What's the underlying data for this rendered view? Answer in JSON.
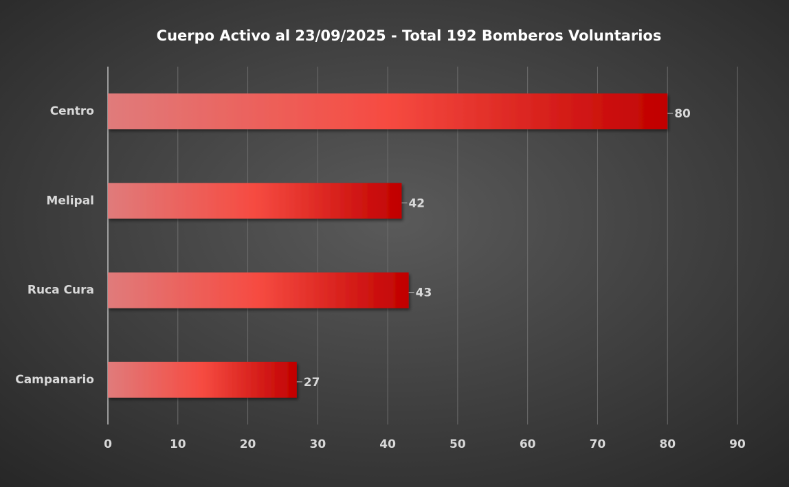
{
  "chart_data": {
    "type": "bar",
    "orientation": "horizontal",
    "title": "Cuerpo Activo al 23/09/2025 - Total 192 Bomberos Voluntarios",
    "categories": [
      "Centro",
      "Melipal",
      "Ruca Cura",
      "Campanario"
    ],
    "values": [
      80,
      42,
      43,
      27
    ],
    "color": "#c00000",
    "xlim": [
      0,
      90
    ],
    "xticks": [
      0,
      10,
      20,
      30,
      40,
      50,
      60,
      70,
      80,
      90
    ],
    "grid": true
  }
}
